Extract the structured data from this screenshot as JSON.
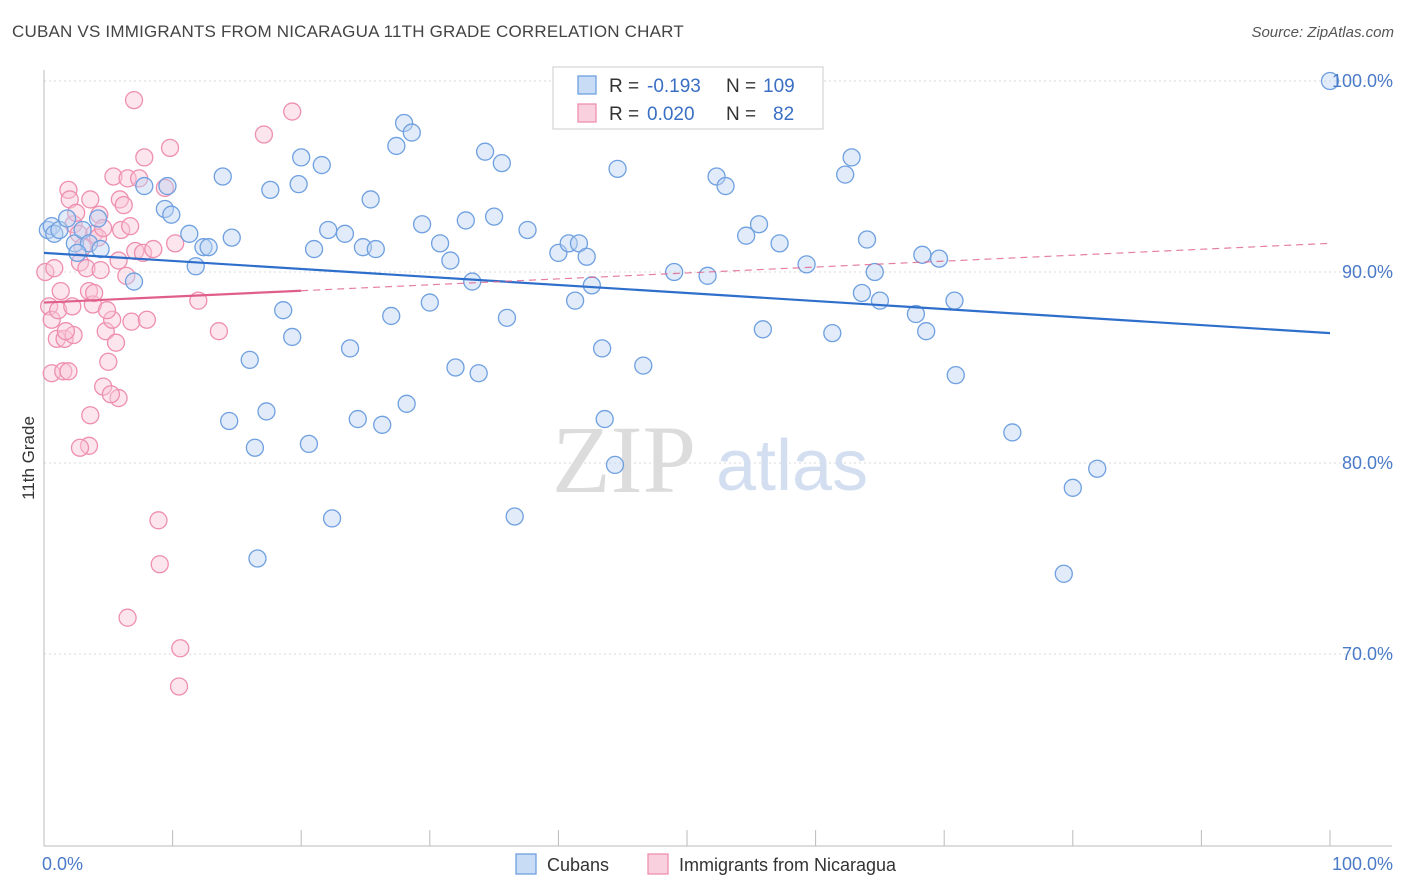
{
  "title": "CUBAN VS IMMIGRANTS FROM NICARAGUA 11TH GRADE CORRELATION CHART",
  "source": "Source: ZipAtlas.com",
  "watermark": {
    "zip": "ZIP",
    "atlas": "atlas"
  },
  "legend": {
    "r_label": "R =",
    "n_label": "N =",
    "rows": [
      {
        "r": "-0.193",
        "n": "109"
      },
      {
        "r": "0.020",
        "n": "82"
      }
    ]
  },
  "colors": {
    "cubans": "#6fa0e0",
    "cubans_fill": "#bcd3f2",
    "cubans_line": "#2f6fcc",
    "nicaragua": "#ee8fb0",
    "nicaragua_fill": "#f8c6d6",
    "nicaragua_line": "#e05f8a",
    "tick_text": "#4a7ac8",
    "grid": "#d8d8d8"
  },
  "chart_data": {
    "type": "scatter",
    "ylabel": "11th Grade",
    "xlim": [
      0,
      100
    ],
    "ylim": [
      60,
      101.5
    ],
    "x_tick_labels": [
      {
        "value": 0,
        "label": "0.0%"
      },
      {
        "value": 100,
        "label": "100.0%"
      }
    ],
    "y_tick_labels": [
      {
        "value": 100,
        "label": "100.0%"
      },
      {
        "value": 90,
        "label": "90.0%"
      },
      {
        "value": 80,
        "label": "80.0%"
      },
      {
        "value": 70,
        "label": "70.0%"
      }
    ],
    "grid": true,
    "legend_position": "top-center",
    "series": [
      {
        "name": "Cubans",
        "trend": {
          "x": [
            0,
            100
          ],
          "y": [
            91.0,
            86.8
          ],
          "dashed_from": null
        },
        "points": [
          [
            0.3,
            92.2
          ],
          [
            0.6,
            92.4
          ],
          [
            0.8,
            92.0
          ],
          [
            1.2,
            92.2
          ],
          [
            1.8,
            92.8
          ],
          [
            2.4,
            91.5
          ],
          [
            3.0,
            92.2
          ],
          [
            3.5,
            91.5
          ],
          [
            2.6,
            91.0
          ],
          [
            4.4,
            91.2
          ],
          [
            4.2,
            92.8
          ],
          [
            7.0,
            89.5
          ],
          [
            7.8,
            94.5
          ],
          [
            9.6,
            94.5
          ],
          [
            9.4,
            93.3
          ],
          [
            9.9,
            93.0
          ],
          [
            11.3,
            92.0
          ],
          [
            11.8,
            90.3
          ],
          [
            12.4,
            91.3
          ],
          [
            12.8,
            91.3
          ],
          [
            13.9,
            95.0
          ],
          [
            14.6,
            91.8
          ],
          [
            16.0,
            85.4
          ],
          [
            14.4,
            82.2
          ],
          [
            16.4,
            80.8
          ],
          [
            16.6,
            75.0
          ],
          [
            17.3,
            82.7
          ],
          [
            17.6,
            94.3
          ],
          [
            18.6,
            88.0
          ],
          [
            19.3,
            86.6
          ],
          [
            19.8,
            94.6
          ],
          [
            20.0,
            96.0
          ],
          [
            20.6,
            81.0
          ],
          [
            21.0,
            91.2
          ],
          [
            21.6,
            95.6
          ],
          [
            22.1,
            92.2
          ],
          [
            22.4,
            77.1
          ],
          [
            23.4,
            92.0
          ],
          [
            23.8,
            86.0
          ],
          [
            24.4,
            82.3
          ],
          [
            24.8,
            91.3
          ],
          [
            25.4,
            93.8
          ],
          [
            25.8,
            91.2
          ],
          [
            26.3,
            82.0
          ],
          [
            27.0,
            87.7
          ],
          [
            27.4,
            96.6
          ],
          [
            28.0,
            97.8
          ],
          [
            28.2,
            83.1
          ],
          [
            28.6,
            97.3
          ],
          [
            29.4,
            92.5
          ],
          [
            30.0,
            88.4
          ],
          [
            30.8,
            91.5
          ],
          [
            31.6,
            90.6
          ],
          [
            32.0,
            85.0
          ],
          [
            32.8,
            92.7
          ],
          [
            33.3,
            89.5
          ],
          [
            33.8,
            84.7
          ],
          [
            34.3,
            96.3
          ],
          [
            35.0,
            92.9
          ],
          [
            35.6,
            95.7
          ],
          [
            36.0,
            87.6
          ],
          [
            36.6,
            77.2
          ],
          [
            37.6,
            92.2
          ],
          [
            40.0,
            91.0
          ],
          [
            40.8,
            91.5
          ],
          [
            41.3,
            88.5
          ],
          [
            41.6,
            91.5
          ],
          [
            42.2,
            90.8
          ],
          [
            42.6,
            89.3
          ],
          [
            43.4,
            86.0
          ],
          [
            43.6,
            82.3
          ],
          [
            44.4,
            79.9
          ],
          [
            44.6,
            95.4
          ],
          [
            46.6,
            85.1
          ],
          [
            49.0,
            90.0
          ],
          [
            51.6,
            89.8
          ],
          [
            52.3,
            95.0
          ],
          [
            53.0,
            94.5
          ],
          [
            54.6,
            91.9
          ],
          [
            55.6,
            92.5
          ],
          [
            55.9,
            87.0
          ],
          [
            57.2,
            91.5
          ],
          [
            59.3,
            90.4
          ],
          [
            61.3,
            86.8
          ],
          [
            62.3,
            95.1
          ],
          [
            62.8,
            96.0
          ],
          [
            63.6,
            88.9
          ],
          [
            64.0,
            91.7
          ],
          [
            64.6,
            90.0
          ],
          [
            65.0,
            88.5
          ],
          [
            67.8,
            87.8
          ],
          [
            68.3,
            90.9
          ],
          [
            68.6,
            86.9
          ],
          [
            69.6,
            90.7
          ],
          [
            70.8,
            88.5
          ],
          [
            70.9,
            84.6
          ],
          [
            75.3,
            81.6
          ],
          [
            79.3,
            74.2
          ],
          [
            80.0,
            78.7
          ],
          [
            81.9,
            79.7
          ],
          [
            100.0,
            100.0
          ]
        ]
      },
      {
        "name": "Immigrants from Nicaragua",
        "trend": {
          "x": [
            0,
            100
          ],
          "y": [
            88.4,
            91.5
          ],
          "dashed_from": 20
        },
        "points": [
          [
            0.1,
            90.0
          ],
          [
            0.4,
            88.2
          ],
          [
            0.6,
            87.5
          ],
          [
            0.8,
            90.2
          ],
          [
            1.1,
            88.0
          ],
          [
            1.3,
            89.0
          ],
          [
            1.0,
            86.5
          ],
          [
            0.6,
            84.7
          ],
          [
            1.5,
            84.8
          ],
          [
            1.6,
            86.5
          ],
          [
            1.9,
            94.3
          ],
          [
            2.0,
            93.8
          ],
          [
            2.3,
            92.5
          ],
          [
            2.5,
            93.1
          ],
          [
            2.7,
            92.0
          ],
          [
            2.8,
            90.5
          ],
          [
            3.0,
            91.3
          ],
          [
            3.3,
            90.2
          ],
          [
            3.5,
            89.0
          ],
          [
            3.8,
            88.3
          ],
          [
            3.6,
            93.8
          ],
          [
            3.9,
            92.0
          ],
          [
            4.2,
            91.8
          ],
          [
            4.3,
            93.0
          ],
          [
            4.6,
            92.3
          ],
          [
            4.4,
            90.1
          ],
          [
            4.8,
            86.9
          ],
          [
            4.6,
            84.0
          ],
          [
            5.0,
            85.3
          ],
          [
            5.3,
            87.5
          ],
          [
            5.6,
            86.3
          ],
          [
            5.8,
            83.4
          ],
          [
            5.4,
            95.0
          ],
          [
            5.9,
            93.8
          ],
          [
            6.2,
            93.5
          ],
          [
            6.5,
            94.9
          ],
          [
            6.4,
            89.8
          ],
          [
            6.8,
            87.4
          ],
          [
            7.1,
            91.1
          ],
          [
            7.4,
            94.9
          ],
          [
            7.8,
            96.0
          ],
          [
            7.7,
            91.0
          ],
          [
            8.0,
            87.5
          ],
          [
            8.5,
            91.2
          ],
          [
            9.4,
            94.4
          ],
          [
            9.8,
            96.5
          ],
          [
            10.2,
            91.5
          ],
          [
            8.9,
            77.0
          ],
          [
            9.0,
            74.7
          ],
          [
            6.5,
            71.9
          ],
          [
            10.6,
            70.3
          ],
          [
            10.5,
            68.3
          ],
          [
            12.0,
            88.5
          ],
          [
            13.6,
            86.9
          ],
          [
            17.1,
            97.2
          ],
          [
            19.3,
            98.4
          ],
          [
            7.0,
            99.0
          ],
          [
            3.5,
            80.9
          ],
          [
            2.8,
            80.8
          ],
          [
            3.6,
            82.5
          ],
          [
            5.2,
            83.6
          ],
          [
            2.3,
            86.7
          ],
          [
            1.9,
            84.8
          ],
          [
            3.9,
            88.9
          ],
          [
            4.9,
            88.0
          ],
          [
            5.8,
            90.6
          ],
          [
            6.0,
            92.2
          ],
          [
            1.7,
            86.9
          ],
          [
            2.2,
            88.2
          ],
          [
            6.7,
            92.4
          ]
        ]
      }
    ]
  },
  "bottom_legend": [
    {
      "label": "Cubans"
    },
    {
      "label": "Immigrants from Nicaragua"
    }
  ]
}
